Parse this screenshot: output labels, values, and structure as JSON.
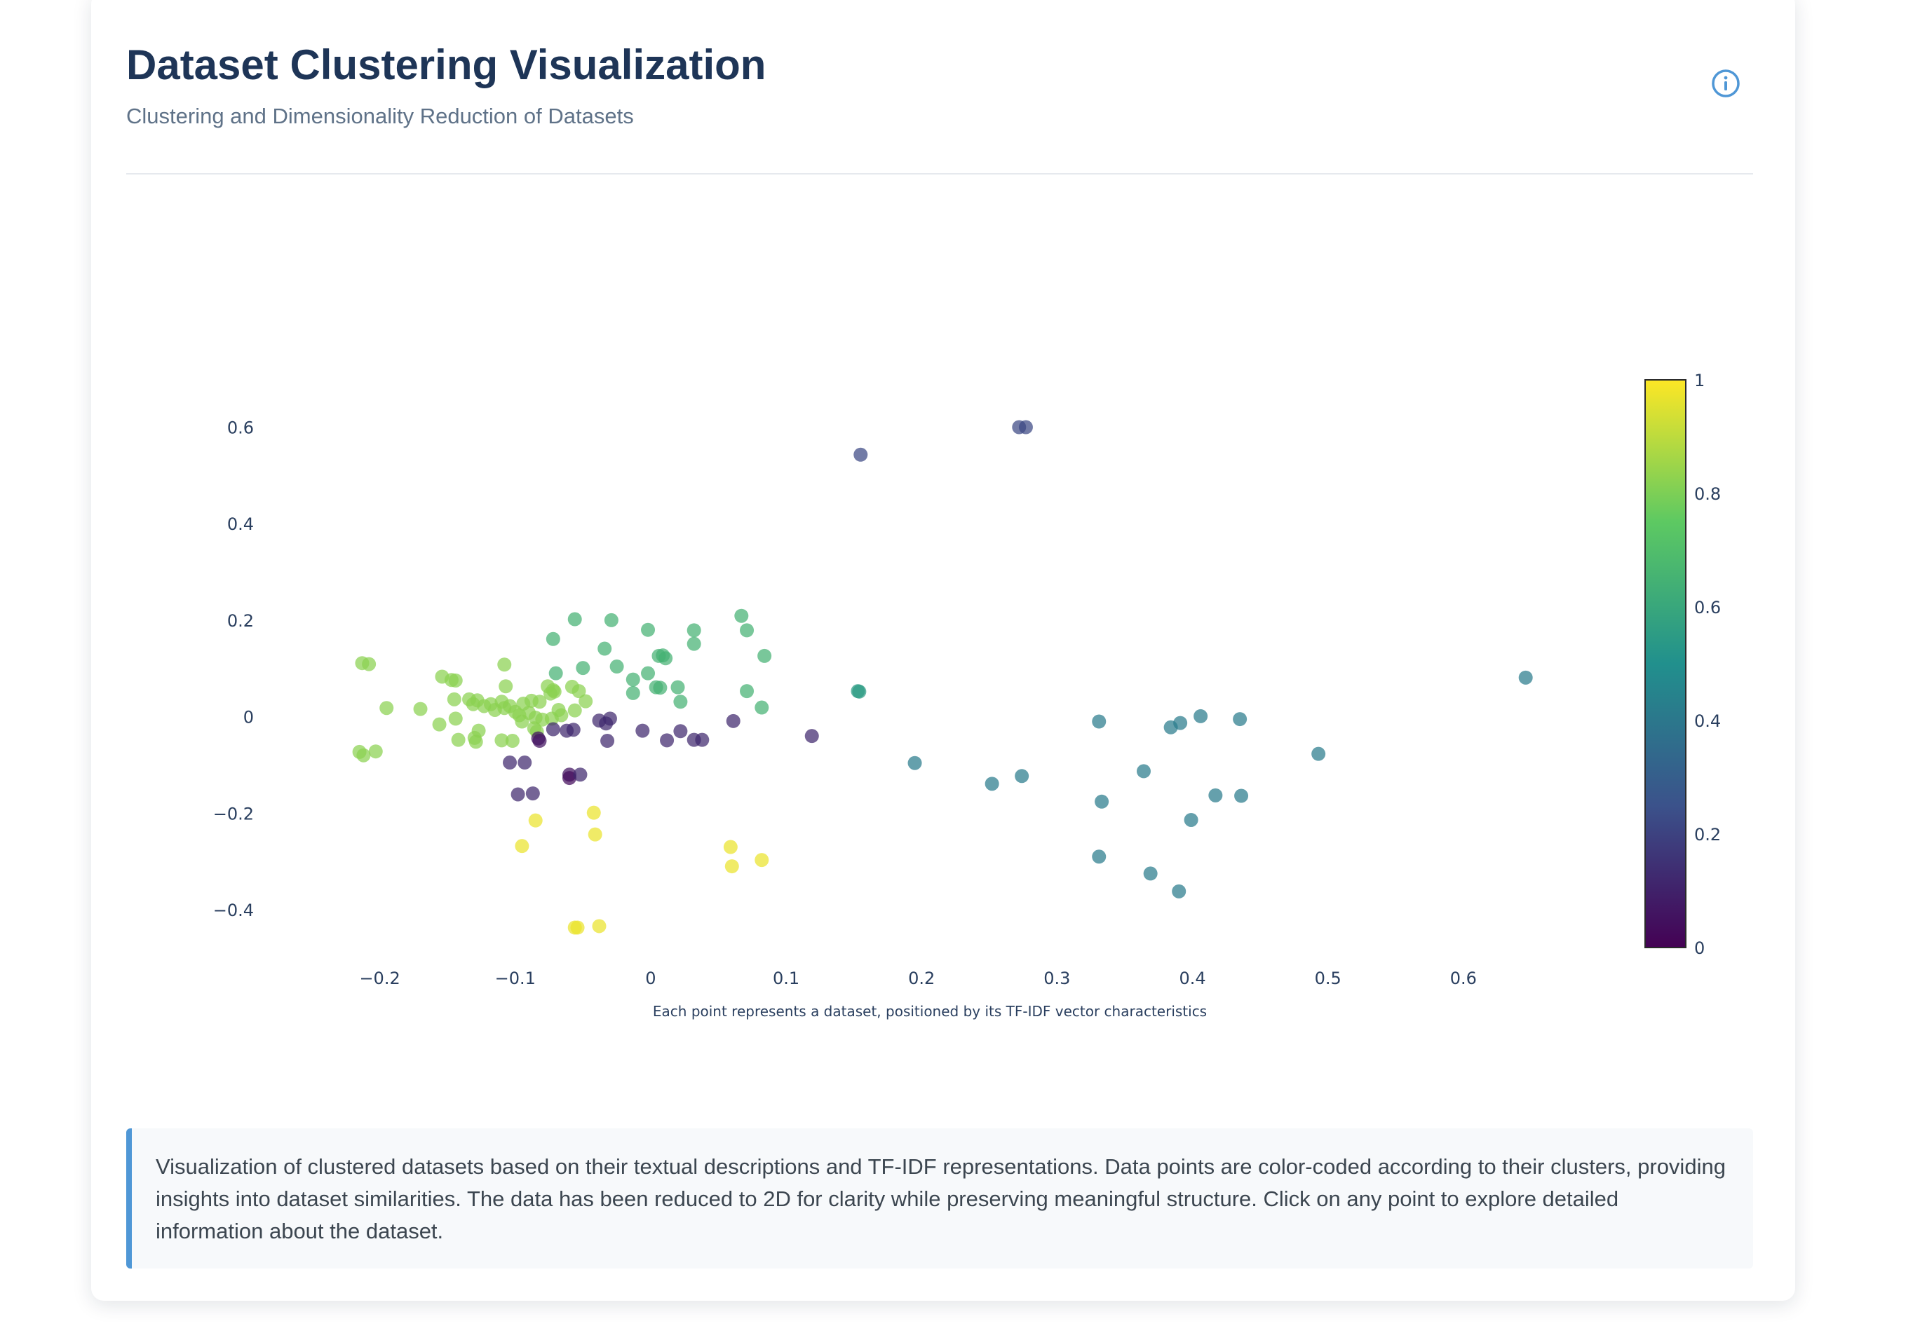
{
  "header": {
    "title": "Dataset Clustering Visualization",
    "subtitle": "Clustering and Dimensionality Reduction of Datasets"
  },
  "icons": {
    "info": "info-circle-icon"
  },
  "colors": {
    "accent": "#4f97d6",
    "title": "#1e3557",
    "viridis": [
      "#440154",
      "#3b528b",
      "#21908d",
      "#5dc962",
      "#fde725"
    ]
  },
  "description": "Visualization of clustered datasets based on their textual descriptions and TF-IDF representations. Data points are color-coded according to their clusters, providing insights into dataset similarities. The data has been reduced to 2D for clarity while preserving meaningful structure. Click on any point to explore detailed information about the dataset.",
  "chart_data": {
    "type": "scatter",
    "title": "",
    "xlabel": "Each point represents a dataset, positioned by its TF-IDF vector characteristics",
    "ylabel": "",
    "xlim": [
      -0.25,
      0.7
    ],
    "ylim": [
      -0.49,
      0.73
    ],
    "xticks": [
      -0.2,
      -0.1,
      0,
      0.1,
      0.2,
      0.3,
      0.4,
      0.5,
      0.6
    ],
    "xtick_labels": [
      "−0.2",
      "−0.1",
      "0",
      "0.1",
      "0.2",
      "0.3",
      "0.4",
      "0.5",
      "0.6"
    ],
    "yticks": [
      -0.4,
      -0.2,
      0,
      0.2,
      0.4,
      0.6
    ],
    "ytick_labels": [
      "−0.4",
      "−0.2",
      "0",
      "0.2",
      "0.4",
      "0.6"
    ],
    "grid": false,
    "colorscale": "Viridis",
    "colorbar": {
      "range": [
        0,
        1
      ],
      "ticks": [
        0,
        0.2,
        0.4,
        0.6,
        0.8,
        1
      ],
      "tick_labels": [
        "0",
        "0.2",
        "0.4",
        "0.6",
        "0.8",
        "1"
      ],
      "placement": "right"
    },
    "points": [
      {
        "x": 0.272,
        "y": 0.6,
        "c": 0.22
      },
      {
        "x": 0.277,
        "y": 0.6,
        "c": 0.22
      },
      {
        "x": 0.155,
        "y": 0.543,
        "c": 0.22
      },
      {
        "x": -0.213,
        "y": 0.111,
        "c": 0.82
      },
      {
        "x": -0.208,
        "y": 0.109,
        "c": 0.82
      },
      {
        "x": -0.195,
        "y": 0.018,
        "c": 0.82
      },
      {
        "x": -0.215,
        "y": -0.073,
        "c": 0.82
      },
      {
        "x": -0.212,
        "y": -0.08,
        "c": 0.82
      },
      {
        "x": -0.203,
        "y": -0.072,
        "c": 0.82
      },
      {
        "x": -0.17,
        "y": 0.016,
        "c": 0.82
      },
      {
        "x": -0.156,
        "y": -0.016,
        "c": 0.82
      },
      {
        "x": -0.154,
        "y": 0.083,
        "c": 0.82
      },
      {
        "x": -0.147,
        "y": 0.076,
        "c": 0.82
      },
      {
        "x": -0.144,
        "y": 0.075,
        "c": 0.82
      },
      {
        "x": -0.145,
        "y": 0.036,
        "c": 0.82
      },
      {
        "x": -0.144,
        "y": -0.004,
        "c": 0.82
      },
      {
        "x": -0.142,
        "y": -0.048,
        "c": 0.82
      },
      {
        "x": -0.134,
        "y": 0.036,
        "c": 0.82
      },
      {
        "x": -0.131,
        "y": 0.026,
        "c": 0.82
      },
      {
        "x": -0.128,
        "y": 0.034,
        "c": 0.82
      },
      {
        "x": -0.13,
        "y": -0.044,
        "c": 0.82
      },
      {
        "x": -0.129,
        "y": -0.052,
        "c": 0.82
      },
      {
        "x": -0.127,
        "y": -0.029,
        "c": 0.82
      },
      {
        "x": -0.123,
        "y": 0.022,
        "c": 0.82
      },
      {
        "x": -0.118,
        "y": 0.026,
        "c": 0.82
      },
      {
        "x": -0.115,
        "y": 0.014,
        "c": 0.82
      },
      {
        "x": -0.11,
        "y": 0.031,
        "c": 0.82
      },
      {
        "x": -0.108,
        "y": 0.108,
        "c": 0.82
      },
      {
        "x": -0.107,
        "y": 0.063,
        "c": 0.82
      },
      {
        "x": -0.108,
        "y": 0.018,
        "c": 0.82
      },
      {
        "x": -0.104,
        "y": 0.022,
        "c": 0.82
      },
      {
        "x": -0.11,
        "y": -0.049,
        "c": 0.82
      },
      {
        "x": -0.102,
        "y": -0.05,
        "c": 0.82
      },
      {
        "x": -0.1,
        "y": 0.01,
        "c": 0.82
      },
      {
        "x": -0.097,
        "y": 0.003,
        "c": 0.82
      },
      {
        "x": -0.095,
        "y": -0.01,
        "c": 0.82
      },
      {
        "x": -0.094,
        "y": 0.027,
        "c": 0.82
      },
      {
        "x": -0.09,
        "y": 0.008,
        "c": 0.82
      },
      {
        "x": -0.088,
        "y": 0.033,
        "c": 0.82
      },
      {
        "x": -0.086,
        "y": -0.024,
        "c": 0.82
      },
      {
        "x": -0.085,
        "y": -0.002,
        "c": 0.82
      },
      {
        "x": -0.084,
        "y": -0.031,
        "c": 0.82
      },
      {
        "x": -0.082,
        "y": 0.031,
        "c": 0.82
      },
      {
        "x": -0.08,
        "y": -0.006,
        "c": 0.82
      },
      {
        "x": -0.076,
        "y": 0.063,
        "c": 0.82
      },
      {
        "x": -0.074,
        "y": 0.048,
        "c": 0.82
      },
      {
        "x": -0.072,
        "y": 0.055,
        "c": 0.82
      },
      {
        "x": -0.071,
        "y": 0.052,
        "c": 0.82
      },
      {
        "x": -0.073,
        "y": -0.004,
        "c": 0.82
      },
      {
        "x": -0.068,
        "y": 0.014,
        "c": 0.82
      },
      {
        "x": -0.066,
        "y": 0.003,
        "c": 0.82
      },
      {
        "x": -0.058,
        "y": 0.062,
        "c": 0.82
      },
      {
        "x": -0.056,
        "y": 0.013,
        "c": 0.82
      },
      {
        "x": -0.053,
        "y": 0.053,
        "c": 0.82
      },
      {
        "x": -0.048,
        "y": 0.032,
        "c": 0.82
      },
      {
        "x": -0.056,
        "y": 0.202,
        "c": 0.65
      },
      {
        "x": -0.072,
        "y": 0.161,
        "c": 0.65
      },
      {
        "x": -0.07,
        "y": 0.09,
        "c": 0.65
      },
      {
        "x": -0.05,
        "y": 0.101,
        "c": 0.65
      },
      {
        "x": -0.034,
        "y": 0.141,
        "c": 0.65
      },
      {
        "x": -0.029,
        "y": 0.2,
        "c": 0.65
      },
      {
        "x": -0.025,
        "y": 0.104,
        "c": 0.65
      },
      {
        "x": -0.013,
        "y": 0.077,
        "c": 0.65
      },
      {
        "x": -0.013,
        "y": 0.049,
        "c": 0.65
      },
      {
        "x": -0.002,
        "y": 0.18,
        "c": 0.65
      },
      {
        "x": -0.002,
        "y": 0.09,
        "c": 0.65
      },
      {
        "x": 0.004,
        "y": 0.061,
        "c": 0.65
      },
      {
        "x": 0.006,
        "y": 0.126,
        "c": 0.65
      },
      {
        "x": 0.007,
        "y": 0.06,
        "c": 0.65
      },
      {
        "x": 0.009,
        "y": 0.127,
        "c": 0.65
      },
      {
        "x": 0.011,
        "y": 0.121,
        "c": 0.65
      },
      {
        "x": 0.02,
        "y": 0.061,
        "c": 0.65
      },
      {
        "x": 0.022,
        "y": 0.031,
        "c": 0.65
      },
      {
        "x": 0.032,
        "y": 0.179,
        "c": 0.65
      },
      {
        "x": 0.032,
        "y": 0.151,
        "c": 0.65
      },
      {
        "x": 0.067,
        "y": 0.209,
        "c": 0.65
      },
      {
        "x": 0.071,
        "y": 0.179,
        "c": 0.65
      },
      {
        "x": 0.071,
        "y": 0.053,
        "c": 0.65
      },
      {
        "x": 0.082,
        "y": 0.019,
        "c": 0.65
      },
      {
        "x": 0.084,
        "y": 0.126,
        "c": 0.65
      },
      {
        "x": 0.153,
        "y": 0.053,
        "c": 0.55
      },
      {
        "x": 0.154,
        "y": 0.052,
        "c": 0.55
      },
      {
        "x": -0.093,
        "y": -0.095,
        "c": 0.12
      },
      {
        "x": -0.104,
        "y": -0.095,
        "c": 0.12
      },
      {
        "x": -0.098,
        "y": -0.161,
        "c": 0.12
      },
      {
        "x": -0.087,
        "y": -0.159,
        "c": 0.12
      },
      {
        "x": -0.083,
        "y": -0.045,
        "c": 0.06
      },
      {
        "x": -0.082,
        "y": -0.05,
        "c": 0.06
      },
      {
        "x": -0.072,
        "y": -0.026,
        "c": 0.12
      },
      {
        "x": -0.062,
        "y": -0.029,
        "c": 0.12
      },
      {
        "x": -0.057,
        "y": -0.027,
        "c": 0.12
      },
      {
        "x": -0.06,
        "y": -0.12,
        "c": 0.06
      },
      {
        "x": -0.06,
        "y": -0.127,
        "c": 0.03
      },
      {
        "x": -0.052,
        "y": -0.12,
        "c": 0.12
      },
      {
        "x": -0.038,
        "y": -0.008,
        "c": 0.12
      },
      {
        "x": -0.033,
        "y": -0.014,
        "c": 0.12
      },
      {
        "x": -0.03,
        "y": -0.004,
        "c": 0.12
      },
      {
        "x": -0.032,
        "y": -0.05,
        "c": 0.12
      },
      {
        "x": -0.006,
        "y": -0.029,
        "c": 0.12
      },
      {
        "x": 0.012,
        "y": -0.049,
        "c": 0.12
      },
      {
        "x": 0.022,
        "y": -0.03,
        "c": 0.12
      },
      {
        "x": 0.032,
        "y": -0.048,
        "c": 0.12
      },
      {
        "x": 0.038,
        "y": -0.048,
        "c": 0.12
      },
      {
        "x": 0.061,
        "y": -0.009,
        "c": 0.12
      },
      {
        "x": 0.119,
        "y": -0.04,
        "c": 0.12
      },
      {
        "x": -0.085,
        "y": -0.215,
        "c": 0.97
      },
      {
        "x": -0.095,
        "y": -0.268,
        "c": 0.97
      },
      {
        "x": -0.042,
        "y": -0.199,
        "c": 0.97
      },
      {
        "x": -0.041,
        "y": -0.244,
        "c": 0.97
      },
      {
        "x": -0.056,
        "y": -0.437,
        "c": 0.97
      },
      {
        "x": -0.054,
        "y": -0.437,
        "c": 0.97
      },
      {
        "x": -0.038,
        "y": -0.434,
        "c": 0.97
      },
      {
        "x": 0.059,
        "y": -0.27,
        "c": 0.97
      },
      {
        "x": 0.06,
        "y": -0.31,
        "c": 0.97
      },
      {
        "x": 0.082,
        "y": -0.297,
        "c": 0.97
      },
      {
        "x": 0.195,
        "y": -0.096,
        "c": 0.42
      },
      {
        "x": 0.252,
        "y": -0.139,
        "c": 0.42
      },
      {
        "x": 0.274,
        "y": -0.123,
        "c": 0.42
      },
      {
        "x": 0.331,
        "y": -0.01,
        "c": 0.42
      },
      {
        "x": 0.333,
        "y": -0.176,
        "c": 0.42
      },
      {
        "x": 0.331,
        "y": -0.29,
        "c": 0.42
      },
      {
        "x": 0.364,
        "y": -0.113,
        "c": 0.42
      },
      {
        "x": 0.369,
        "y": -0.325,
        "c": 0.42
      },
      {
        "x": 0.384,
        "y": -0.022,
        "c": 0.42
      },
      {
        "x": 0.391,
        "y": -0.013,
        "c": 0.42
      },
      {
        "x": 0.39,
        "y": -0.362,
        "c": 0.42
      },
      {
        "x": 0.399,
        "y": -0.214,
        "c": 0.42
      },
      {
        "x": 0.406,
        "y": 0.001,
        "c": 0.42
      },
      {
        "x": 0.417,
        "y": -0.163,
        "c": 0.42
      },
      {
        "x": 0.435,
        "y": -0.005,
        "c": 0.42
      },
      {
        "x": 0.436,
        "y": -0.164,
        "c": 0.42
      },
      {
        "x": 0.493,
        "y": -0.077,
        "c": 0.42
      },
      {
        "x": 0.646,
        "y": 0.081,
        "c": 0.42
      }
    ]
  }
}
